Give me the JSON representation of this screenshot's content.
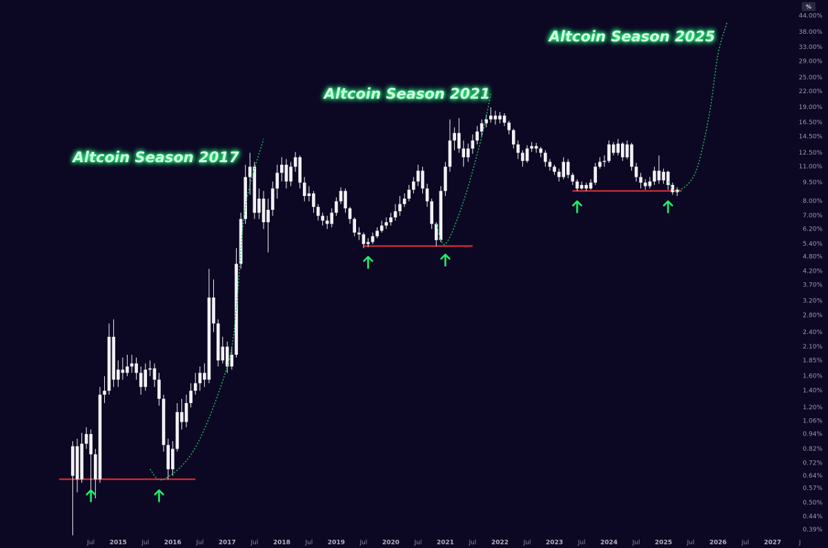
{
  "chart_data": {
    "type": "candlestick",
    "scale_button": "%",
    "annotations": [
      "Altcoin Season 2017",
      "Altcoin Season 2021",
      "Altcoin Season 2025"
    ],
    "log_scale": true,
    "color": "#f2f2f6",
    "x": [
      "2014-03",
      "2014-04",
      "2014-05",
      "2014-06",
      "2014-07",
      "2014-08",
      "2014-09",
      "2014-10",
      "2014-11",
      "2014-12",
      "2015-01",
      "2015-02",
      "2015-03",
      "2015-04",
      "2015-05",
      "2015-06",
      "2015-07",
      "2015-08",
      "2015-09",
      "2015-10",
      "2015-11",
      "2015-12",
      "2016-01",
      "2016-02",
      "2016-03",
      "2016-04",
      "2016-05",
      "2016-06",
      "2016-07",
      "2016-08",
      "2016-09",
      "2016-10",
      "2016-11",
      "2016-12",
      "2017-01",
      "2017-02",
      "2017-03",
      "2017-04",
      "2017-05",
      "2017-06",
      "2017-07",
      "2017-08",
      "2017-09",
      "2017-10",
      "2017-11",
      "2017-12",
      "2018-01",
      "2018-02",
      "2018-03",
      "2018-04",
      "2018-05",
      "2018-06",
      "2018-07",
      "2018-08",
      "2018-09",
      "2018-10",
      "2018-11",
      "2018-12",
      "2019-01",
      "2019-02",
      "2019-03",
      "2019-04",
      "2019-05",
      "2019-06",
      "2019-07",
      "2019-08",
      "2019-09",
      "2019-10",
      "2019-11",
      "2019-12",
      "2020-01",
      "2020-02",
      "2020-03",
      "2020-04",
      "2020-05",
      "2020-06",
      "2020-07",
      "2020-08",
      "2020-09",
      "2020-10",
      "2020-11",
      "2020-12",
      "2021-01",
      "2021-02",
      "2021-03",
      "2021-04",
      "2021-05",
      "2021-06",
      "2021-07",
      "2021-08",
      "2021-09",
      "2021-10",
      "2021-11",
      "2021-12",
      "2022-01",
      "2022-02",
      "2022-03",
      "2022-04",
      "2022-05",
      "2022-06",
      "2022-07",
      "2022-08",
      "2022-09",
      "2022-10",
      "2022-11",
      "2022-12",
      "2023-01",
      "2023-02",
      "2023-03",
      "2023-04",
      "2023-05",
      "2023-06",
      "2023-07",
      "2023-08",
      "2023-09",
      "2023-10",
      "2023-11",
      "2023-12",
      "2024-01",
      "2024-02",
      "2024-03",
      "2024-04",
      "2024-05",
      "2024-06",
      "2024-07",
      "2024-08",
      "2024-09",
      "2024-10",
      "2024-11",
      "2024-12",
      "2025-01",
      "2025-02",
      "2025-03",
      "2025-04"
    ],
    "open": [
      0.64,
      0.84,
      0.62,
      0.86,
      0.94,
      0.78,
      0.62,
      1.35,
      1.4,
      2.3,
      1.55,
      1.7,
      1.65,
      1.75,
      1.8,
      1.65,
      1.45,
      1.7,
      1.72,
      1.55,
      1.3,
      0.85,
      0.68,
      0.82,
      1.15,
      1.05,
      1.25,
      1.4,
      1.5,
      1.65,
      1.55,
      3.3,
      2.6,
      1.85,
      2.1,
      1.75,
      1.95,
      4.5,
      6.8,
      10,
      11,
      7.2,
      8.2,
      6.6,
      7.4,
      9,
      10.4,
      11.2,
      9.6,
      11,
      12,
      9.5,
      8.4,
      8.6,
      7.6,
      7,
      6.7,
      6.5,
      7.2,
      8,
      8.8,
      7.5,
      6.8,
      6,
      5.9,
      5.4,
      5.5,
      5.8,
      6.1,
      6.4,
      6.6,
      6.9,
      7.3,
      7.8,
      8.2,
      8.9,
      9.6,
      10.6,
      9,
      8,
      6.5,
      5.6,
      8.8,
      11,
      14,
      15,
      13,
      12,
      13,
      14,
      15.2,
      16.4,
      17,
      17.6,
      17,
      17.6,
      16.5,
      15.4,
      13.5,
      12.5,
      11.6,
      13,
      13.3,
      13,
      12.5,
      11.5,
      11,
      10.5,
      10,
      11.5,
      10.2,
      9.6,
      9,
      9.3,
      9,
      9.5,
      11,
      11.5,
      11.6,
      13.5,
      12.5,
      13.6,
      12,
      13.5,
      11,
      10,
      9.5,
      9.2,
      9.6,
      10.6,
      9.7,
      10.5,
      9.3,
      8.7
    ],
    "high": [
      0.88,
      0.9,
      0.95,
      1.0,
      0.98,
      0.82,
      1.45,
      1.6,
      2.6,
      2.7,
      1.85,
      1.9,
      1.95,
      1.95,
      1.9,
      1.75,
      1.8,
      1.85,
      1.8,
      1.65,
      1.35,
      0.9,
      0.88,
      1.25,
      1.3,
      1.35,
      1.5,
      1.65,
      1.75,
      1.8,
      4.3,
      3.9,
      2.7,
      2.3,
      2.2,
      2.1,
      5.2,
      7.2,
      11.2,
      12.5,
      11.5,
      9,
      8.8,
      8.2,
      9.6,
      11.2,
      12,
      11.8,
      11.5,
      12.6,
      12.2,
      10,
      9.2,
      8.8,
      7.8,
      7.2,
      7,
      7.5,
      8.3,
      9.1,
      9,
      7.6,
      6.9,
      6.3,
      6,
      5.7,
      6,
      6.3,
      6.7,
      6.9,
      7.2,
      7.8,
      8.4,
      8.6,
      9.3,
      10,
      11.2,
      11,
      9.4,
      8.2,
      6.6,
      9.2,
      11.5,
      17,
      15.8,
      17.2,
      14,
      13.6,
      14.8,
      16,
      17,
      17.8,
      19,
      18.4,
      18.2,
      18,
      16.8,
      15.6,
      14,
      12.8,
      13.4,
      13.8,
      13.7,
      13.2,
      12.8,
      11.8,
      11.2,
      10.8,
      12,
      11.8,
      10.4,
      9.8,
      9.6,
      9.5,
      9.8,
      11.4,
      12,
      12.2,
      14,
      13.8,
      14.2,
      13.8,
      14,
      13.7,
      11.4,
      10.4,
      9.8,
      10,
      11,
      12.2,
      10.8,
      10.6,
      9.5,
      9.1
    ],
    "low": [
      0.37,
      0.55,
      0.6,
      0.82,
      0.55,
      0.52,
      0.6,
      1.25,
      1.35,
      1.45,
      1.45,
      1.55,
      1.6,
      1.65,
      1.55,
      1.35,
      1.4,
      1.6,
      1.45,
      1.22,
      0.8,
      0.62,
      0.64,
      0.8,
      0.98,
      1.0,
      1.2,
      1.35,
      1.4,
      1.45,
      1.5,
      2.4,
      1.75,
      1.8,
      1.65,
      1.7,
      1.9,
      4.3,
      6.5,
      8.5,
      6.8,
      6.8,
      6.2,
      5,
      7,
      8.2,
      9.6,
      9,
      9.2,
      10.5,
      9,
      8,
      8,
      7.2,
      6.7,
      6.4,
      6.2,
      6.3,
      7,
      7.8,
      7.2,
      6.5,
      5.8,
      5.6,
      5.2,
      5.25,
      5.4,
      5.7,
      6,
      6.2,
      6.4,
      6.7,
      7,
      7.6,
      8,
      8.6,
      9.2,
      8.6,
      7.6,
      6.2,
      5.3,
      5.5,
      8.4,
      10.5,
      12.8,
      12.5,
      11,
      11.5,
      12.4,
      13.5,
      14.5,
      15.8,
      16.5,
      16.2,
      16.4,
      16,
      14.8,
      13,
      11.8,
      11,
      11.4,
      12.6,
      12.5,
      12,
      11,
      10.6,
      10.2,
      9.6,
      9.8,
      9.9,
      9.3,
      8.8,
      8.9,
      8.8,
      8.9,
      9.3,
      10.8,
      11,
      11.4,
      12.2,
      12.2,
      11.6,
      11.8,
      10.6,
      9.6,
      9,
      8.9,
      9,
      9.3,
      9.4,
      9.4,
      8.9,
      8.5,
      8.4
    ],
    "close": [
      0.84,
      0.62,
      0.86,
      0.94,
      0.78,
      0.62,
      1.35,
      1.4,
      2.3,
      1.55,
      1.7,
      1.65,
      1.75,
      1.8,
      1.65,
      1.45,
      1.7,
      1.72,
      1.55,
      1.3,
      0.85,
      0.68,
      0.82,
      1.15,
      1.05,
      1.25,
      1.4,
      1.5,
      1.65,
      1.55,
      3.3,
      2.6,
      1.85,
      2.1,
      1.75,
      1.95,
      4.5,
      6.8,
      10,
      11,
      7.2,
      8.2,
      6.6,
      7.4,
      9,
      10.4,
      11.2,
      9.6,
      11,
      12,
      9.5,
      8.4,
      8.6,
      7.6,
      7,
      6.7,
      6.5,
      7.2,
      8,
      8.8,
      7.5,
      6.8,
      6,
      5.9,
      5.4,
      5.5,
      5.8,
      6.1,
      6.4,
      6.6,
      6.9,
      7.3,
      7.8,
      8.2,
      8.9,
      9.6,
      10.6,
      9,
      8,
      6.5,
      5.6,
      8.8,
      11,
      14,
      15,
      13,
      12,
      13,
      14,
      15.2,
      16.4,
      17,
      17.6,
      17,
      17.6,
      16.5,
      15.4,
      13.5,
      12.5,
      11.6,
      13,
      13.3,
      13,
      12.5,
      11.5,
      11,
      10.5,
      10,
      11.5,
      10.2,
      9.6,
      9,
      9.3,
      9,
      9.5,
      11,
      11.5,
      11.6,
      13.5,
      12.5,
      13.6,
      12,
      13.5,
      11,
      10,
      9.5,
      9.2,
      9.6,
      10.6,
      9.7,
      10.5,
      9.3,
      8.7,
      8.9
    ],
    "levels": [
      {
        "value": 0.62,
        "start": "2013-12",
        "end": "2016-06",
        "color": "#e8303a"
      },
      {
        "value": 5.3,
        "start": "2019-07",
        "end": "2021-07",
        "color": "#e8303a"
      },
      {
        "value": 8.8,
        "start": "2023-05",
        "end": "2025-05",
        "color": "#e8303a"
      }
    ],
    "arrows": [
      {
        "x": "2014-07",
        "value": 0.56,
        "color": "#1cf06a"
      },
      {
        "x": "2015-10",
        "value": 0.56,
        "color": "#1cf06a"
      },
      {
        "x": "2019-08",
        "value": 4.8,
        "color": "#1cf06a"
      },
      {
        "x": "2021-01",
        "value": 4.9,
        "color": "#1cf06a"
      },
      {
        "x": "2023-06",
        "value": 8,
        "color": "#1cf06a"
      },
      {
        "x": "2025-02",
        "value": 8,
        "color": "#1cf06a"
      }
    ],
    "curves": [
      {
        "color": "#1fc95a",
        "x": [
          "2015-08",
          "2015-11",
          "2016-06",
          "2017-01",
          "2017-03",
          "2017-05",
          "2017-09"
        ],
        "values": [
          0.68,
          0.62,
          0.83,
          1.75,
          3,
          7.6,
          14.2
        ]
      },
      {
        "color": "#1fc95a",
        "x": [
          "2020-11",
          "2021-01",
          "2021-05",
          "2021-09",
          "2021-11"
        ],
        "values": [
          6.5,
          5.4,
          8,
          14.5,
          21.5
        ]
      },
      {
        "color": "#1fc95a",
        "x": [
          "2025-02",
          "2025-04",
          "2025-08",
          "2025-11",
          "2026-01",
          "2026-03"
        ],
        "values": [
          9.6,
          8.8,
          10.4,
          17.5,
          31,
          41.5
        ]
      }
    ],
    "xlim": [
      "2012-11",
      "2027-05"
    ],
    "xticks": [
      {
        "value": "2014-07",
        "label": "Jul"
      },
      {
        "value": "2015-01",
        "label": "2015"
      },
      {
        "value": "2015-07",
        "label": "Jul"
      },
      {
        "value": "2016-01",
        "label": "2016"
      },
      {
        "value": "2016-07",
        "label": "Jul"
      },
      {
        "value": "2017-01",
        "label": "2017"
      },
      {
        "value": "2017-07",
        "label": "Jul"
      },
      {
        "value": "2018-01",
        "label": "2018"
      },
      {
        "value": "2018-07",
        "label": "Jul"
      },
      {
        "value": "2019-01",
        "label": "2019"
      },
      {
        "value": "2019-07",
        "label": "Jul"
      },
      {
        "value": "2020-01",
        "label": "2020"
      },
      {
        "value": "2020-07",
        "label": "Jul"
      },
      {
        "value": "2021-01",
        "label": "2021"
      },
      {
        "value": "2021-07",
        "label": "Jul"
      },
      {
        "value": "2022-01",
        "label": "2022"
      },
      {
        "value": "2022-07",
        "label": "Jul"
      },
      {
        "value": "2023-01",
        "label": "2023"
      },
      {
        "value": "2023-07",
        "label": "Jul"
      },
      {
        "value": "2024-01",
        "label": "2024"
      },
      {
        "value": "2024-07",
        "label": "Jul"
      },
      {
        "value": "2025-01",
        "label": "2025"
      },
      {
        "value": "2025-07",
        "label": "Jul"
      },
      {
        "value": "2026-01",
        "label": "2026"
      },
      {
        "value": "2026-07",
        "label": "Jul"
      },
      {
        "value": "2027-01",
        "label": "2027"
      },
      {
        "value": "2027-07",
        "label": "J"
      }
    ],
    "ylim": [
      0.36,
      51
    ],
    "yticks": [
      {
        "value": 44,
        "label": "44.00%"
      },
      {
        "value": 38,
        "label": "38.00%"
      },
      {
        "value": 33,
        "label": "33.00%"
      },
      {
        "value": 29,
        "label": "29.00%"
      },
      {
        "value": 25,
        "label": "25.00%"
      },
      {
        "value": 22,
        "label": "22.00%"
      },
      {
        "value": 19,
        "label": "19.00%"
      },
      {
        "value": 16.5,
        "label": "16.50%"
      },
      {
        "value": 14.5,
        "label": "14.50%"
      },
      {
        "value": 12.5,
        "label": "12.50%"
      },
      {
        "value": 11,
        "label": "11.00%"
      },
      {
        "value": 9.5,
        "label": "9.50%"
      },
      {
        "value": 8,
        "label": "8.00%"
      },
      {
        "value": 7,
        "label": "7.00%"
      },
      {
        "value": 6.2,
        "label": "6.20%"
      },
      {
        "value": 5.4,
        "label": "5.40%"
      },
      {
        "value": 4.8,
        "label": "4.80%"
      },
      {
        "value": 4.2,
        "label": "4.20%"
      },
      {
        "value": 3.7,
        "label": "3.70%"
      },
      {
        "value": 3.2,
        "label": "3.20%"
      },
      {
        "value": 2.8,
        "label": "2.80%"
      },
      {
        "value": 2.4,
        "label": "2.40%"
      },
      {
        "value": 2.1,
        "label": "2.10%"
      },
      {
        "value": 1.85,
        "label": "1.85%"
      },
      {
        "value": 1.6,
        "label": "1.60%"
      },
      {
        "value": 1.4,
        "label": "1.40%"
      },
      {
        "value": 1.2,
        "label": "1.20%"
      },
      {
        "value": 1.06,
        "label": "1.06%"
      },
      {
        "value": 0.94,
        "label": "0.94%"
      },
      {
        "value": 0.82,
        "label": "0.82%"
      },
      {
        "value": 0.72,
        "label": "0.72%"
      },
      {
        "value": 0.64,
        "label": "0.64%"
      },
      {
        "value": 0.57,
        "label": "0.57%"
      },
      {
        "value": 0.5,
        "label": "0.50%"
      },
      {
        "value": 0.44,
        "label": "0.44%"
      },
      {
        "value": 0.39,
        "label": "0.39%"
      }
    ]
  }
}
